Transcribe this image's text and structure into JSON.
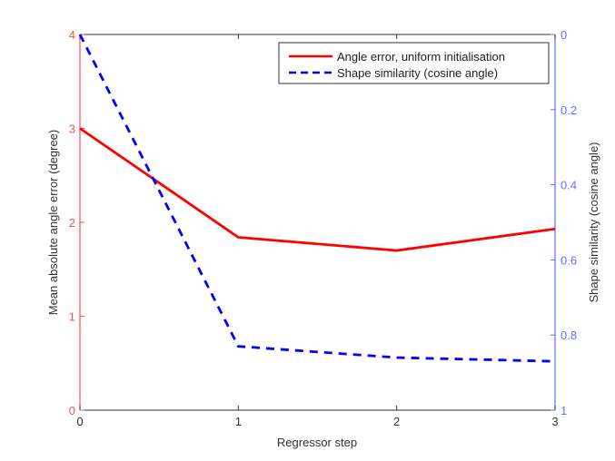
{
  "chart_data": {
    "type": "line",
    "title": "",
    "xlabel": "Regressor step",
    "ylabel": "Mean absolute angle error (degree)",
    "ylabel_right": "Shape similarity (cosine angle)",
    "x": [
      0,
      1,
      2,
      3
    ],
    "xlim": [
      0,
      3
    ],
    "xticks": [
      "0",
      "1",
      "2",
      "3"
    ],
    "ylim": [
      0,
      4
    ],
    "yticks": [
      "0",
      "1",
      "2",
      "3",
      "4"
    ],
    "ylim_right": [
      0,
      1
    ],
    "y_right_inverted": true,
    "yticks_right": [
      "0",
      "0.2",
      "0.4",
      "0.6",
      "0.8",
      "1"
    ],
    "grid": false,
    "legend_position": "top-right",
    "series": [
      {
        "name": "Angle error, uniform initialisation",
        "axis": "left",
        "color": "#ff0000",
        "style": "solid",
        "values": [
          3.0,
          1.84,
          1.7,
          1.93
        ]
      },
      {
        "name": "Shape similarity (cosine angle)",
        "axis": "right",
        "color": "#0000ff",
        "style": "dashed",
        "values": [
          0.0,
          0.83,
          0.86,
          0.87
        ]
      }
    ],
    "left_axis_color": "#ff4d4d",
    "right_axis_color": "#6b6bff"
  }
}
